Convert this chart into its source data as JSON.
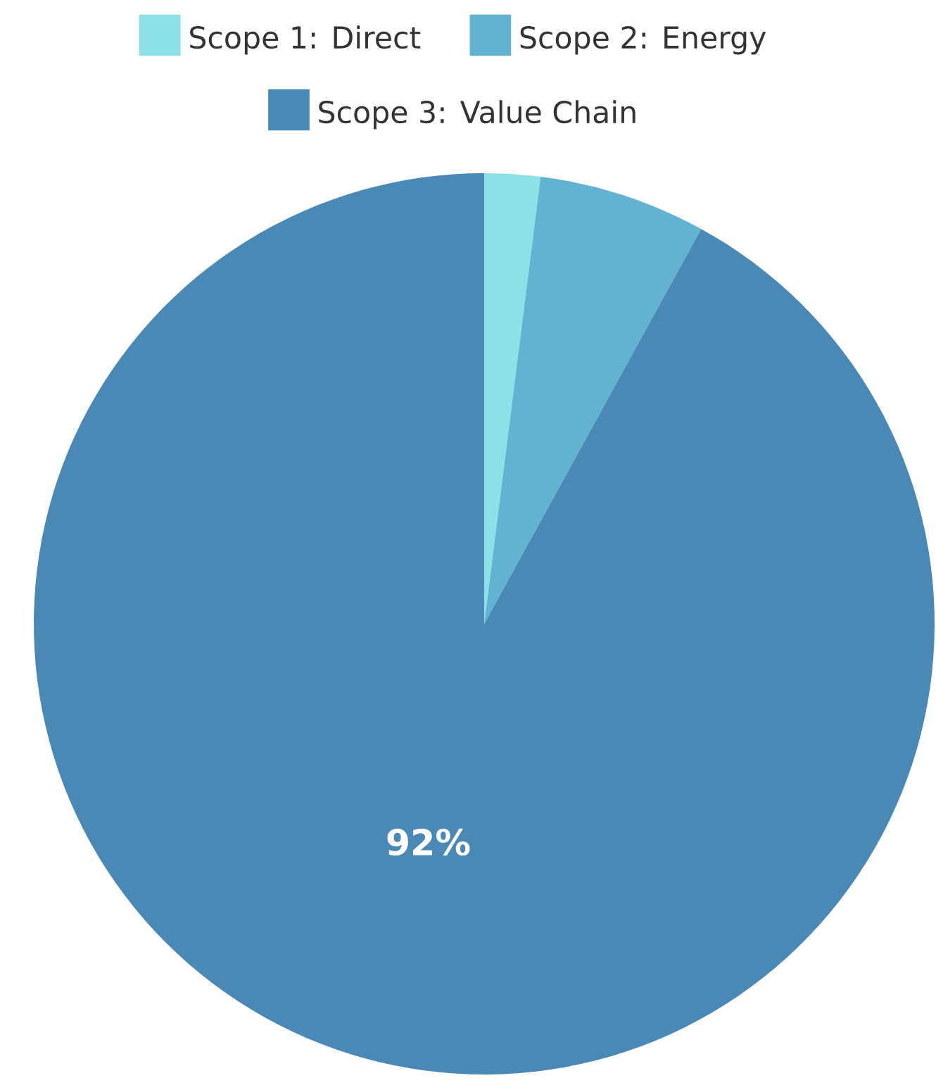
{
  "chart_data": {
    "type": "pie",
    "categories": [
      "Scope 1: Direct",
      "Scope 2: Energy",
      "Scope 3: Value Chain"
    ],
    "values": [
      2,
      6,
      92
    ],
    "colors": [
      "#8de0e6",
      "#62b3d2",
      "#4a89b5"
    ],
    "value_labels": [
      null,
      null,
      "92%"
    ],
    "legend": "top"
  }
}
